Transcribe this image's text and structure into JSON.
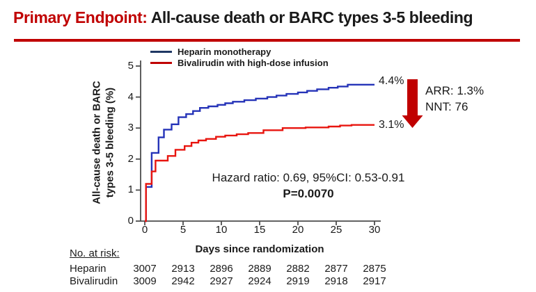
{
  "title": {
    "highlight": "Primary Endpoint:",
    "rest": " All-cause death or BARC types 3-5 bleeding"
  },
  "colors": {
    "accent_red": "#C00000",
    "axis": "#4d4d4d",
    "text": "#1a1a1a"
  },
  "chart_data": {
    "type": "line",
    "subtype": "step",
    "xlabel": "Days since randomization",
    "ylabel_lines": [
      "All-cause death or BARC",
      "types 3-5 bleeding (%)"
    ],
    "xlim": [
      0,
      30
    ],
    "ylim": [
      0,
      5
    ],
    "xticks": [
      0,
      5,
      10,
      15,
      20,
      25,
      30
    ],
    "yticks": [
      0,
      1,
      2,
      3,
      4,
      5
    ],
    "grid": false,
    "legend_position": "top-left",
    "series": [
      {
        "name": "Heparin monotherapy",
        "color": "#2533B8",
        "legend_color": "#1F3864",
        "end_label": "4.4%",
        "points": [
          [
            0,
            0
          ],
          [
            0.15,
            1.1
          ],
          [
            0.9,
            2.2
          ],
          [
            1.8,
            2.7
          ],
          [
            2.5,
            2.95
          ],
          [
            3.5,
            3.12
          ],
          [
            4.4,
            3.35
          ],
          [
            5.4,
            3.45
          ],
          [
            6.3,
            3.55
          ],
          [
            7.2,
            3.65
          ],
          [
            8.3,
            3.7
          ],
          [
            9.5,
            3.75
          ],
          [
            10.5,
            3.8
          ],
          [
            11.5,
            3.85
          ],
          [
            13,
            3.9
          ],
          [
            14.5,
            3.95
          ],
          [
            16,
            4.0
          ],
          [
            17.2,
            4.05
          ],
          [
            18.5,
            4.1
          ],
          [
            20,
            4.15
          ],
          [
            21.2,
            4.2
          ],
          [
            22.5,
            4.25
          ],
          [
            24,
            4.3
          ],
          [
            25.2,
            4.34
          ],
          [
            26.5,
            4.4
          ],
          [
            30,
            4.4
          ]
        ]
      },
      {
        "name": "Bivalirudin with high-dose infusion",
        "color": "#E8150F",
        "legend_color": "#C00000",
        "end_label": "3.1%",
        "points": [
          [
            0,
            0
          ],
          [
            0.15,
            1.2
          ],
          [
            0.9,
            1.6
          ],
          [
            1.4,
            1.95
          ],
          [
            3,
            2.1
          ],
          [
            4,
            2.3
          ],
          [
            5.2,
            2.42
          ],
          [
            6.1,
            2.53
          ],
          [
            7,
            2.6
          ],
          [
            8,
            2.65
          ],
          [
            9.3,
            2.72
          ],
          [
            10.5,
            2.76
          ],
          [
            12,
            2.8
          ],
          [
            13.5,
            2.84
          ],
          [
            15.5,
            2.93
          ],
          [
            18,
            3.0
          ],
          [
            21,
            3.02
          ],
          [
            24,
            3.05
          ],
          [
            25.5,
            3.08
          ],
          [
            27,
            3.1
          ],
          [
            30,
            3.1
          ]
        ]
      }
    ],
    "annotations": {
      "hazard_ratio": "Hazard ratio: 0.69, 95%CI: 0.53-0.91",
      "p_value": "P=0.0070",
      "arr": "ARR: 1.3%",
      "nnt": "NNT: 76"
    }
  },
  "risk_table": {
    "heading": "No. at risk:",
    "rows": [
      {
        "label": "Heparin",
        "values": [
          "3007",
          "2913",
          "2896",
          "2889",
          "2882",
          "2877",
          "2875"
        ]
      },
      {
        "label": "Bivalirudin",
        "values": [
          "3009",
          "2942",
          "2927",
          "2924",
          "2919",
          "2918",
          "2917"
        ]
      }
    ]
  }
}
